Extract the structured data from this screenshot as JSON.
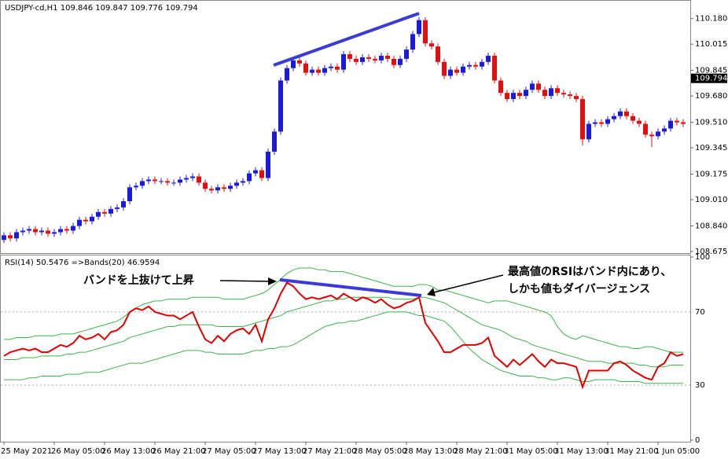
{
  "chart_data": [
    {
      "type": "candlestick",
      "title": "USDJPY-cd,H1  109.846 109.847 109.776 109.794",
      "up_color": "#1c1cd8",
      "down_color": "#e01010",
      "ylim": [
        108.665,
        110.29
      ],
      "yticks": [
        108.675,
        {
          "value": 108.84,
          "label": "108.840"
        },
        {
          "value": 109.01,
          "label": "109.010"
        },
        109.175,
        109.345,
        {
          "value": 109.51,
          "label": "109.510"
        },
        {
          "value": 109.68,
          "label": "109.680"
        },
        109.845,
        110.015,
        {
          "value": 110.18,
          "label": "110.180"
        }
      ],
      "last_price": 109.794,
      "categories": [
        "25 May 2021",
        null,
        null,
        null,
        null,
        null,
        null,
        null,
        "26 May 05:00",
        null,
        null,
        null,
        null,
        null,
        null,
        null,
        "26 May 13:00",
        null,
        null,
        null,
        null,
        null,
        null,
        null,
        "26 May 21:00",
        null,
        null,
        null,
        null,
        null,
        null,
        null,
        "27 May 05:00",
        null,
        null,
        null,
        null,
        null,
        null,
        null,
        "27 May 13:00",
        null,
        null,
        null,
        null,
        null,
        null,
        null,
        "27 May 21:00",
        null,
        null,
        null,
        null,
        null,
        null,
        null,
        "28 May 05:00",
        null,
        null,
        null,
        null,
        null,
        null,
        null,
        "28 May 13:00",
        null,
        null,
        null,
        null,
        null,
        null,
        null,
        "28 May 21:00",
        null,
        null,
        null,
        null,
        null,
        null,
        null,
        "31 May 05:00",
        null,
        null,
        null,
        null,
        null,
        null,
        null,
        "31 May 13:00",
        null,
        null,
        null,
        null,
        null,
        null,
        null,
        "31 May 21:00",
        null,
        null,
        null,
        null,
        null,
        null,
        null,
        "1 Jun 05:00",
        null,
        null,
        null,
        null
      ],
      "open": [
        108.75,
        108.78,
        108.76,
        108.8,
        108.81,
        108.82,
        108.8,
        108.81,
        108.79,
        108.8,
        108.82,
        108.81,
        108.84,
        108.88,
        108.87,
        108.9,
        108.93,
        108.92,
        108.95,
        108.96,
        109.0,
        109.09,
        109.1,
        109.13,
        109.14,
        109.13,
        109.13,
        109.12,
        109.12,
        109.14,
        109.15,
        109.16,
        109.12,
        109.08,
        109.07,
        109.09,
        109.08,
        109.1,
        109.12,
        109.13,
        109.18,
        109.2,
        109.15,
        109.32,
        109.45,
        109.78,
        109.86,
        109.91,
        109.89,
        109.83,
        109.85,
        109.83,
        109.86,
        109.87,
        109.85,
        109.95,
        109.92,
        109.9,
        109.93,
        109.92,
        109.91,
        109.94,
        109.92,
        109.88,
        109.92,
        109.98,
        110.08,
        110.17,
        110.02,
        110.0,
        109.9,
        109.81,
        109.85,
        109.83,
        109.87,
        109.88,
        109.87,
        109.9,
        109.94,
        109.78,
        109.7,
        109.66,
        109.7,
        109.68,
        109.72,
        109.76,
        109.72,
        109.68,
        109.73,
        109.7,
        109.69,
        109.68,
        109.66,
        109.4,
        109.5,
        109.51,
        109.5,
        109.53,
        109.55,
        109.58,
        109.55,
        109.52,
        109.5,
        109.43,
        109.42,
        109.45,
        109.47,
        109.52,
        109.51
      ],
      "high": [
        108.8,
        108.8,
        108.82,
        108.83,
        108.84,
        108.84,
        108.83,
        108.83,
        108.82,
        108.84,
        108.84,
        108.86,
        108.9,
        108.9,
        108.92,
        108.95,
        108.95,
        108.97,
        108.98,
        109.02,
        109.11,
        109.12,
        109.15,
        109.16,
        109.16,
        109.15,
        109.15,
        109.14,
        109.16,
        109.17,
        109.18,
        109.18,
        109.14,
        109.1,
        109.11,
        109.11,
        109.12,
        109.14,
        109.15,
        109.2,
        109.22,
        109.22,
        109.34,
        109.47,
        109.8,
        109.88,
        109.93,
        109.93,
        109.91,
        109.87,
        109.87,
        109.88,
        109.89,
        109.89,
        109.97,
        109.97,
        109.94,
        109.95,
        109.95,
        109.94,
        109.96,
        109.96,
        109.94,
        109.94,
        110.0,
        110.1,
        110.19,
        110.19,
        110.04,
        110.02,
        109.92,
        109.87,
        109.87,
        109.89,
        109.9,
        109.9,
        109.92,
        109.96,
        109.96,
        109.8,
        109.72,
        109.72,
        109.72,
        109.74,
        109.78,
        109.78,
        109.74,
        109.75,
        109.75,
        109.72,
        109.71,
        109.7,
        109.68,
        109.52,
        109.53,
        109.53,
        109.55,
        109.57,
        109.6,
        109.6,
        109.57,
        109.54,
        109.52,
        109.45,
        109.47,
        109.49,
        109.54,
        109.54,
        109.53
      ],
      "low": [
        108.73,
        108.74,
        108.74,
        108.78,
        108.79,
        108.78,
        108.78,
        108.77,
        108.77,
        108.78,
        108.79,
        108.79,
        108.82,
        108.85,
        108.85,
        108.88,
        108.9,
        108.9,
        108.93,
        108.94,
        108.98,
        109.07,
        109.08,
        109.11,
        109.11,
        109.11,
        109.1,
        109.1,
        109.1,
        109.12,
        109.13,
        109.1,
        109.06,
        109.05,
        109.05,
        109.06,
        109.06,
        109.08,
        109.1,
        109.11,
        109.16,
        109.13,
        109.13,
        109.3,
        109.43,
        109.76,
        109.84,
        109.87,
        109.81,
        109.81,
        109.81,
        109.81,
        109.84,
        109.83,
        109.83,
        109.9,
        109.88,
        109.88,
        109.9,
        109.89,
        109.89,
        109.9,
        109.86,
        109.86,
        109.9,
        109.96,
        110.06,
        110.0,
        109.98,
        109.88,
        109.79,
        109.79,
        109.81,
        109.81,
        109.85,
        109.85,
        109.85,
        109.88,
        109.76,
        109.68,
        109.64,
        109.64,
        109.66,
        109.66,
        109.7,
        109.7,
        109.66,
        109.66,
        109.68,
        109.67,
        109.66,
        109.64,
        109.36,
        109.38,
        109.48,
        109.48,
        109.48,
        109.51,
        109.53,
        109.53,
        109.5,
        109.48,
        109.41,
        109.35,
        109.4,
        109.43,
        109.45,
        109.49,
        109.48
      ],
      "close": [
        108.78,
        108.76,
        108.8,
        108.81,
        108.82,
        108.8,
        108.81,
        108.79,
        108.8,
        108.82,
        108.81,
        108.84,
        108.88,
        108.87,
        108.9,
        108.93,
        108.92,
        108.95,
        108.96,
        109.0,
        109.09,
        109.1,
        109.13,
        109.14,
        109.13,
        109.13,
        109.12,
        109.12,
        109.14,
        109.15,
        109.16,
        109.12,
        109.08,
        109.07,
        109.09,
        109.08,
        109.1,
        109.12,
        109.13,
        109.18,
        109.2,
        109.15,
        109.32,
        109.45,
        109.78,
        109.86,
        109.91,
        109.89,
        109.83,
        109.85,
        109.83,
        109.86,
        109.87,
        109.85,
        109.95,
        109.92,
        109.9,
        109.93,
        109.92,
        109.91,
        109.94,
        109.92,
        109.88,
        109.92,
        109.98,
        110.08,
        110.17,
        110.02,
        110.0,
        109.9,
        109.81,
        109.85,
        109.83,
        109.87,
        109.88,
        109.87,
        109.9,
        109.94,
        109.78,
        109.7,
        109.66,
        109.7,
        109.68,
        109.72,
        109.76,
        109.72,
        109.68,
        109.73,
        109.7,
        109.69,
        109.68,
        109.66,
        109.4,
        109.5,
        109.51,
        109.5,
        109.53,
        109.55,
        109.58,
        109.55,
        109.52,
        109.5,
        109.43,
        109.42,
        109.45,
        109.47,
        109.52,
        109.51,
        109.5
      ]
    },
    {
      "type": "line",
      "title": "RSI(14) 50.5476  =>Bands(20) 46.9594",
      "ylim": [
        0,
        100
      ],
      "yticks": [
        0,
        30,
        70,
        100
      ],
      "grid": true,
      "series": [
        {
          "color": "#e00000",
          "width": 2,
          "values": [
            46,
            48,
            49,
            50,
            49,
            50,
            48,
            48,
            50,
            52,
            51,
            53,
            57,
            55,
            56,
            58,
            55,
            59,
            60,
            63,
            70,
            72,
            71,
            73,
            70,
            69,
            68,
            68,
            66,
            68,
            70,
            62,
            55,
            53,
            57,
            54,
            58,
            60,
            61,
            58,
            63,
            54,
            66,
            72,
            80,
            86,
            84,
            80,
            77,
            78,
            77,
            78,
            79,
            77,
            80,
            78,
            76,
            78,
            77,
            75,
            77,
            74,
            72,
            73,
            75,
            76,
            78,
            64,
            59,
            54,
            48,
            48,
            50,
            52,
            52,
            52,
            53,
            56,
            46,
            43,
            40,
            44,
            41,
            44,
            47,
            43,
            40,
            44,
            42,
            42,
            41,
            40,
            29,
            38,
            38,
            38,
            38,
            42,
            43,
            41,
            38,
            36,
            34,
            33,
            40,
            42,
            48,
            46,
            47
          ]
        },
        {
          "color": "#3cb44b",
          "width": 1,
          "values": [
            55,
            55,
            56,
            56,
            56,
            57,
            57,
            57,
            57,
            58,
            58,
            58,
            59,
            60,
            61,
            62,
            63,
            64,
            65,
            67,
            70,
            72,
            74,
            75,
            76,
            76,
            77,
            77,
            77,
            77,
            78,
            78,
            78,
            78,
            78,
            77,
            77,
            77,
            77,
            78,
            79,
            80,
            82,
            85,
            88,
            91,
            93,
            94,
            94,
            94,
            93,
            93,
            92,
            92,
            92,
            91,
            90,
            89,
            88,
            87,
            86,
            85,
            84,
            84,
            84,
            84,
            85,
            85,
            84,
            82,
            82,
            81,
            80,
            79,
            78,
            77,
            76,
            75,
            76,
            76,
            76,
            75,
            74,
            73,
            72,
            71,
            70,
            68,
            62,
            58,
            56,
            55,
            57,
            56,
            55,
            54,
            53,
            52,
            51,
            51,
            50,
            50,
            51,
            51,
            50,
            49,
            48,
            48,
            48
          ]
        },
        {
          "color": "#3cb44b",
          "width": 1,
          "values": [
            44,
            44,
            44,
            45,
            45,
            45,
            46,
            46,
            46,
            46,
            47,
            47,
            48,
            48,
            49,
            50,
            51,
            52,
            53,
            54,
            56,
            57,
            58,
            59,
            60,
            61,
            62,
            62,
            63,
            63,
            63,
            63,
            63,
            63,
            62,
            62,
            62,
            62,
            62,
            63,
            64,
            65,
            66,
            67,
            68,
            70,
            71,
            72,
            73,
            74,
            75,
            76,
            76,
            77,
            77,
            78,
            78,
            78,
            78,
            78,
            78,
            78,
            77,
            77,
            77,
            77,
            78,
            78,
            77,
            76,
            75,
            73,
            71,
            69,
            67,
            65,
            63,
            62,
            61,
            60,
            58,
            56,
            55,
            54,
            52,
            51,
            50,
            49,
            48,
            47,
            46,
            45,
            44,
            43,
            43,
            43,
            42,
            42,
            42,
            42,
            42,
            41,
            41,
            40,
            40,
            40,
            41,
            41,
            41
          ]
        },
        {
          "color": "#3cb44b",
          "width": 1,
          "values": [
            33,
            33,
            33,
            33,
            34,
            34,
            35,
            35,
            35,
            35,
            36,
            36,
            36,
            37,
            37,
            37,
            38,
            39,
            40,
            41,
            42,
            42,
            42,
            43,
            44,
            45,
            46,
            47,
            48,
            49,
            49,
            49,
            48,
            48,
            47,
            47,
            47,
            47,
            47,
            48,
            49,
            49,
            50,
            50,
            51,
            51,
            52,
            54,
            56,
            58,
            60,
            62,
            63,
            64,
            64,
            65,
            65,
            66,
            67,
            68,
            69,
            70,
            70,
            70,
            70,
            69,
            68,
            68,
            67,
            66,
            65,
            62,
            58,
            54,
            50,
            47,
            44,
            42,
            40,
            38,
            37,
            36,
            35,
            35,
            35,
            34,
            34,
            33,
            33,
            34,
            34,
            33,
            32,
            32,
            33,
            33,
            33,
            33,
            32,
            32,
            32,
            32,
            31,
            31,
            31,
            31,
            31,
            31,
            31
          ]
        }
      ]
    }
  ],
  "annotations": [
    "バンドを上抜けて上昇",
    "最高値のRSIはバンド内にあり、",
    "しかも値もダイバージェンス"
  ]
}
